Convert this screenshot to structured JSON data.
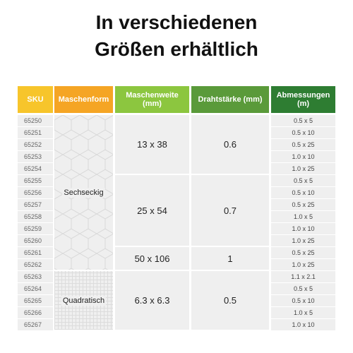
{
  "header": {
    "title": [
      "In verschiedenen",
      "Größen erhältlich"
    ]
  },
  "table": {
    "columns": [
      "SKU",
      "Maschenform",
      "Maschenweite (mm)",
      "Drahtstärke (mm)",
      "Abmessungen (m)"
    ],
    "forms": [
      {
        "label": "Sechseckig",
        "sizes": [
          {
            "weite": "13 x 38",
            "draht": "0.6",
            "items": [
              {
                "sku": "65250",
                "dim": "0.5 x 5"
              },
              {
                "sku": "65251",
                "dim": "0.5 x 10"
              },
              {
                "sku": "65252",
                "dim": "0.5 x 25"
              },
              {
                "sku": "65253",
                "dim": "1.0 x 10"
              },
              {
                "sku": "65254",
                "dim": "1.0 x 25"
              }
            ]
          },
          {
            "weite": "25 x 54",
            "draht": "0.7",
            "items": [
              {
                "sku": "65255",
                "dim": "0.5 x 5"
              },
              {
                "sku": "65256",
                "dim": "0.5 x 10"
              },
              {
                "sku": "65257",
                "dim": "0.5 x 25"
              },
              {
                "sku": "65258",
                "dim": "1.0 x 5"
              },
              {
                "sku": "65259",
                "dim": "1.0 x 10"
              },
              {
                "sku": "65260",
                "dim": "1.0 x 25"
              }
            ]
          },
          {
            "weite": "50 x 106",
            "draht": "1",
            "items": [
              {
                "sku": "65261",
                "dim": "0.5 x 25"
              },
              {
                "sku": "65262",
                "dim": "1.0 x 25"
              }
            ]
          }
        ]
      },
      {
        "label": "Quadratisch",
        "sizes": [
          {
            "weite": "6.3 x 6.3",
            "draht": "0.5",
            "items": [
              {
                "sku": "65263",
                "dim": "1.1 x 2.1"
              },
              {
                "sku": "65264",
                "dim": "0.5 x 5"
              },
              {
                "sku": "65265",
                "dim": "0.5 x 10"
              },
              {
                "sku": "65266",
                "dim": "1.0 x 5"
              },
              {
                "sku": "65267",
                "dim": "1.0 x 10"
              }
            ]
          }
        ]
      }
    ]
  }
}
